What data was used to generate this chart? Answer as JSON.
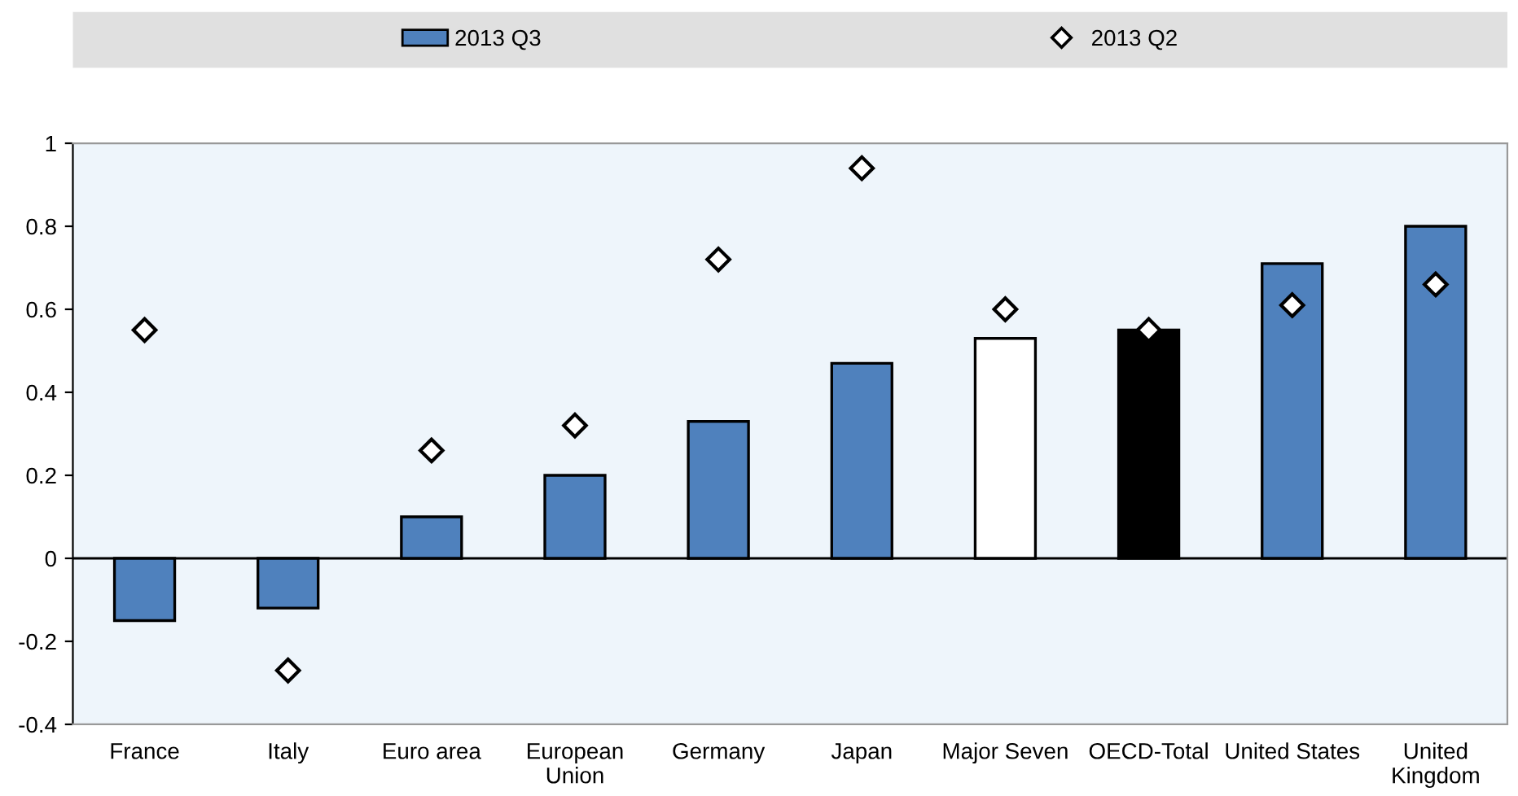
{
  "chart_data": {
    "type": "bar",
    "categories": [
      "France",
      "Italy",
      "Euro area",
      "European\nUnion",
      "Germany",
      "Japan",
      "Major Seven",
      "OECD-Total",
      "United States",
      "United\nKingdom"
    ],
    "series": [
      {
        "name": "2013 Q3",
        "color": "#4f81bd",
        "colors": [
          "#4f81bd",
          "#4f81bd",
          "#4f81bd",
          "#4f81bd",
          "#4f81bd",
          "#4f81bd",
          "#ffffff",
          "#000000",
          "#4f81bd",
          "#4f81bd"
        ],
        "values": [
          -0.15,
          -0.12,
          0.1,
          0.2,
          0.33,
          0.47,
          0.53,
          0.55,
          0.71,
          0.8
        ]
      },
      {
        "name": "2013 Q2",
        "type": "scatter",
        "color": "#ffffff",
        "marker": "diamond",
        "values": [
          0.55,
          -0.27,
          0.26,
          0.32,
          0.72,
          0.94,
          0.6,
          0.55,
          0.61,
          0.66
        ]
      }
    ],
    "ylim": [
      -0.4,
      1
    ],
    "yticks": [
      -0.4,
      -0.2,
      0,
      0.2,
      0.4,
      0.6,
      0.8,
      1
    ],
    "ref_lines": [
      {
        "axis": "y",
        "value": 0,
        "color": "#000000"
      }
    ],
    "grid": false,
    "legend": "top"
  }
}
